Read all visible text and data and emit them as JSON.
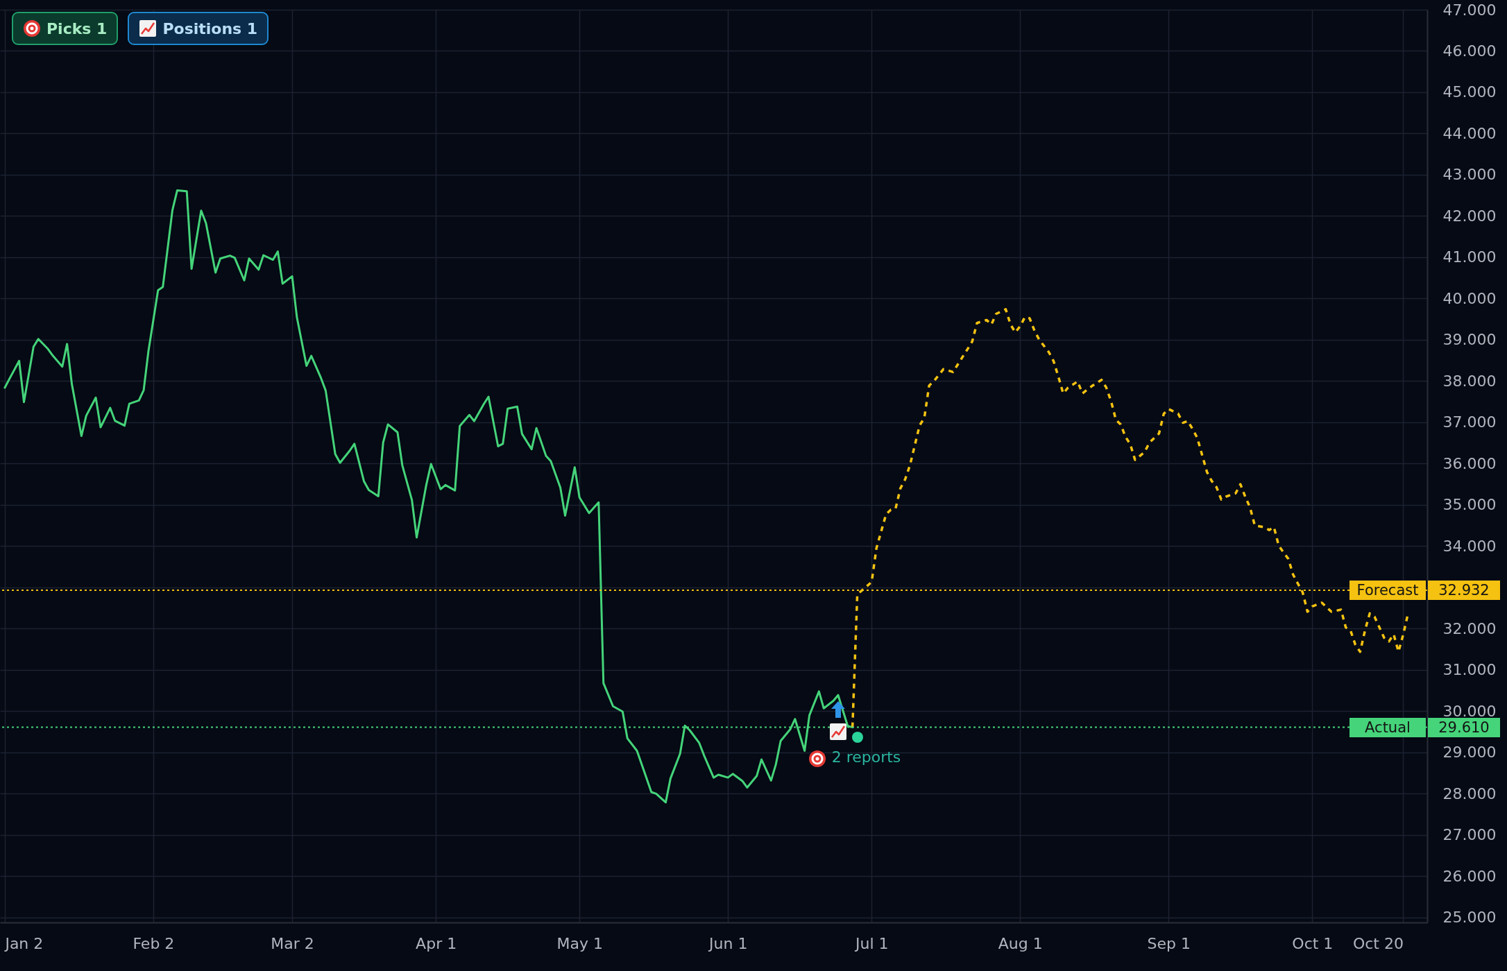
{
  "chart_data": {
    "type": "line",
    "xlim": [
      "--01-01",
      "--10-25"
    ],
    "xticks": [
      {
        "value": "--01-02",
        "label": "Jan 2"
      },
      {
        "value": "--02-02",
        "label": "Feb 2"
      },
      {
        "value": "--03-02",
        "label": "Mar 2"
      },
      {
        "value": "--04-01",
        "label": "Apr 1"
      },
      {
        "value": "--05-01",
        "label": "May 1"
      },
      {
        "value": "--06-01",
        "label": "Jun 1"
      },
      {
        "value": "--07-01",
        "label": "Jul 1"
      },
      {
        "value": "--08-01",
        "label": "Aug 1"
      },
      {
        "value": "--09-01",
        "label": "Sep 1"
      },
      {
        "value": "--10-01",
        "label": "Oct 1"
      },
      {
        "value": "--10-20",
        "label": "Oct 20"
      }
    ],
    "ylim": [
      24.88,
      47.0
    ],
    "yticks": [
      {
        "value": 25,
        "label": "25.000"
      },
      {
        "value": 26,
        "label": "26.000"
      },
      {
        "value": 27,
        "label": "27.000"
      },
      {
        "value": 28,
        "label": "28.000"
      },
      {
        "value": 29,
        "label": "29.000"
      },
      {
        "value": 30,
        "label": "30.000"
      },
      {
        "value": 31,
        "label": "31.000"
      },
      {
        "value": 32,
        "label": "32.000"
      },
      {
        "value": 33,
        "label": null
      },
      {
        "value": 34,
        "label": "34.000"
      },
      {
        "value": 35,
        "label": "35.000"
      },
      {
        "value": 36,
        "label": "36.000"
      },
      {
        "value": 37,
        "label": "37.000"
      },
      {
        "value": 38,
        "label": "38.000"
      },
      {
        "value": 39,
        "label": "39.000"
      },
      {
        "value": 40,
        "label": "40.000"
      },
      {
        "value": 41,
        "label": "41.000"
      },
      {
        "value": 42,
        "label": "42.000"
      },
      {
        "value": 43,
        "label": "43.000"
      },
      {
        "value": 44,
        "label": "44.000"
      },
      {
        "value": 45,
        "label": "45.000"
      },
      {
        "value": 46,
        "label": "46.000"
      },
      {
        "value": 47,
        "label": "47.000"
      }
    ],
    "grid": true,
    "series": [
      {
        "color": "#45d47a",
        "x": [
          "--01-02",
          "--01-03",
          "--01-05",
          "--01-06",
          "--01-08",
          "--01-09",
          "--01-11",
          "--01-12",
          "--01-14",
          "--01-15",
          "--01-16",
          "--01-18",
          "--01-19",
          "--01-21",
          "--01-22",
          "--01-24",
          "--01-25",
          "--01-27",
          "--01-28",
          "--01-30",
          "--01-31",
          "--02-01",
          "--02-03",
          "--02-04",
          "--02-06",
          "--02-07",
          "--02-09",
          "--02-10",
          "--02-12",
          "--02-13",
          "--02-15",
          "--02-16",
          "--02-18",
          "--02-19",
          "--02-21",
          "--02-22",
          "--02-24",
          "--02-25",
          "--02-27",
          "--02-28",
          "--02-29",
          "--03-02",
          "--03-03",
          "--03-05",
          "--03-06",
          "--03-08",
          "--03-09",
          "--03-11",
          "--03-12",
          "--03-14",
          "--03-15",
          "--03-17",
          "--03-18",
          "--03-20",
          "--03-21",
          "--03-22",
          "--03-24",
          "--03-25",
          "--03-27",
          "--03-28",
          "--03-30",
          "--03-31",
          "--04-02",
          "--04-03",
          "--04-05",
          "--04-06",
          "--04-08",
          "--04-09",
          "--04-11",
          "--04-12",
          "--04-14",
          "--04-15",
          "--04-16",
          "--04-18",
          "--04-19",
          "--04-21",
          "--04-22",
          "--04-24",
          "--04-25",
          "--04-27",
          "--04-28",
          "--04-30",
          "--05-01",
          "--05-03",
          "--05-05",
          "--05-06",
          "--05-08",
          "--05-10",
          "--05-11",
          "--05-13",
          "--05-14",
          "--05-16",
          "--05-17",
          "--05-19",
          "--05-20",
          "--05-22",
          "--05-23",
          "--05-24",
          "--05-26",
          "--05-27",
          "--05-29",
          "--05-30",
          "--06-01",
          "--06-02",
          "--06-04",
          "--06-05",
          "--06-07",
          "--06-08",
          "--06-10",
          "--06-11",
          "--06-12",
          "--06-14",
          "--06-15",
          "--06-17",
          "--06-18",
          "--06-20",
          "--06-21",
          "--06-23",
          "--06-24",
          "--06-26",
          "--06-27"
        ],
        "values": [
          37.84,
          38.06,
          38.49,
          37.49,
          38.83,
          39.02,
          38.78,
          38.62,
          38.35,
          38.9,
          37.93,
          36.67,
          37.16,
          37.6,
          36.88,
          37.35,
          37.04,
          36.92,
          37.45,
          37.53,
          37.78,
          38.73,
          40.2,
          40.28,
          42.14,
          42.62,
          42.6,
          40.72,
          42.13,
          41.83,
          40.63,
          40.97,
          41.04,
          40.99,
          40.44,
          40.97,
          40.7,
          41.05,
          40.94,
          41.14,
          40.36,
          40.54,
          39.54,
          38.37,
          38.61,
          38.08,
          37.77,
          36.23,
          36.02,
          36.31,
          36.48,
          35.57,
          35.36,
          35.21,
          36.51,
          36.95,
          36.76,
          35.96,
          35.12,
          34.21,
          35.48,
          35.99,
          35.38,
          35.48,
          35.35,
          36.91,
          37.18,
          37.03,
          37.44,
          37.62,
          36.42,
          36.48,
          37.33,
          37.38,
          36.72,
          36.35,
          36.86,
          36.19,
          36.06,
          35.42,
          34.74,
          35.91,
          35.18,
          34.8,
          35.06,
          30.68,
          30.12,
          29.99,
          29.34,
          29.04,
          28.71,
          28.04,
          28.0,
          27.79,
          28.37,
          28.97,
          29.65,
          29.54,
          29.23,
          28.93,
          28.39,
          28.46,
          28.39,
          28.48,
          28.31,
          28.15,
          28.43,
          28.83,
          28.32,
          28.71,
          29.28,
          29.56,
          29.81,
          29.04,
          29.9,
          30.48,
          30.07,
          30.25,
          30.39,
          29.64,
          29.61
        ]
      },
      {
        "color": "#f5c211",
        "line_style": "dashed",
        "x": [
          "--06-27",
          "--06-28",
          "--07-01",
          "--07-02",
          "--07-04",
          "--07-05",
          "--07-06",
          "--07-07",
          "--07-08",
          "--07-09",
          "--07-11",
          "--07-12",
          "--07-13",
          "--07-14",
          "--07-16",
          "--07-18",
          "--07-20",
          "--07-21",
          "--07-22",
          "--07-23",
          "--07-25",
          "--07-26",
          "--07-27",
          "--07-29",
          "--07-30",
          "--07-31",
          "--08-01",
          "--08-02",
          "--08-03",
          "--08-04",
          "--08-05",
          "--08-07",
          "--08-08",
          "--08-09",
          "--08-10",
          "--08-11",
          "--08-13",
          "--08-14",
          "--08-16",
          "--08-18",
          "--08-19",
          "--08-20",
          "--08-21",
          "--08-22",
          "--08-23",
          "--08-24",
          "--08-25",
          "--08-27",
          "--08-28",
          "--08-30",
          "--08-31",
          "--09-01",
          "--09-03",
          "--09-04",
          "--09-05",
          "--09-06",
          "--09-07",
          "--09-08",
          "--09-09",
          "--09-10",
          "--09-11",
          "--09-12",
          "--09-13",
          "--09-15",
          "--09-16",
          "--09-17",
          "--09-18",
          "--09-19",
          "--09-21",
          "--09-22",
          "--09-23",
          "--09-24",
          "--09-26",
          "--09-27",
          "--09-28",
          "--09-29",
          "--09-30",
          "--10-01",
          "--10-03",
          "--10-05",
          "--10-07",
          "--10-08",
          "--10-09",
          "--10-10",
          "--10-11",
          "--10-12",
          "--10-13",
          "--10-14",
          "--10-16",
          "--10-17",
          "--10-18",
          "--10-19",
          "--10-20",
          "--10-21"
        ],
        "values": [
          29.61,
          32.83,
          33.13,
          33.95,
          34.77,
          34.88,
          34.91,
          35.4,
          35.62,
          35.96,
          36.92,
          37.11,
          37.89,
          38.0,
          38.29,
          38.22,
          38.59,
          38.77,
          38.96,
          39.41,
          39.48,
          39.37,
          39.63,
          39.74,
          39.37,
          39.18,
          39.33,
          39.55,
          39.52,
          39.22,
          39.0,
          38.7,
          38.48,
          38.1,
          37.7,
          37.84,
          37.99,
          37.7,
          37.88,
          38.03,
          37.84,
          37.51,
          37.06,
          36.95,
          36.65,
          36.47,
          36.09,
          36.28,
          36.51,
          36.73,
          37.21,
          37.32,
          37.21,
          36.99,
          37.03,
          36.84,
          36.62,
          36.21,
          35.8,
          35.58,
          35.43,
          35.13,
          35.2,
          35.28,
          35.5,
          35.2,
          34.94,
          34.5,
          34.46,
          34.39,
          34.46,
          34.01,
          33.69,
          33.31,
          33.09,
          32.88,
          32.41,
          32.54,
          32.63,
          32.41,
          32.46,
          32.03,
          31.95,
          31.61,
          31.44,
          31.95,
          32.37,
          32.29,
          31.78,
          31.69,
          31.86,
          31.44,
          31.86,
          32.37
        ]
      }
    ],
    "ref_lines": [
      {
        "axis": "y",
        "value": 32.932,
        "label": "Forecast",
        "color": "#f5c211",
        "line_style": "dotted"
      },
      {
        "axis": "y",
        "value": 29.61,
        "label": "Actual",
        "color": "#45d47a",
        "line_style": "dotted"
      }
    ],
    "annotations": [
      "Picks 1",
      "Positions 1",
      "2 reports",
      "32.932",
      "29.610"
    ]
  }
}
